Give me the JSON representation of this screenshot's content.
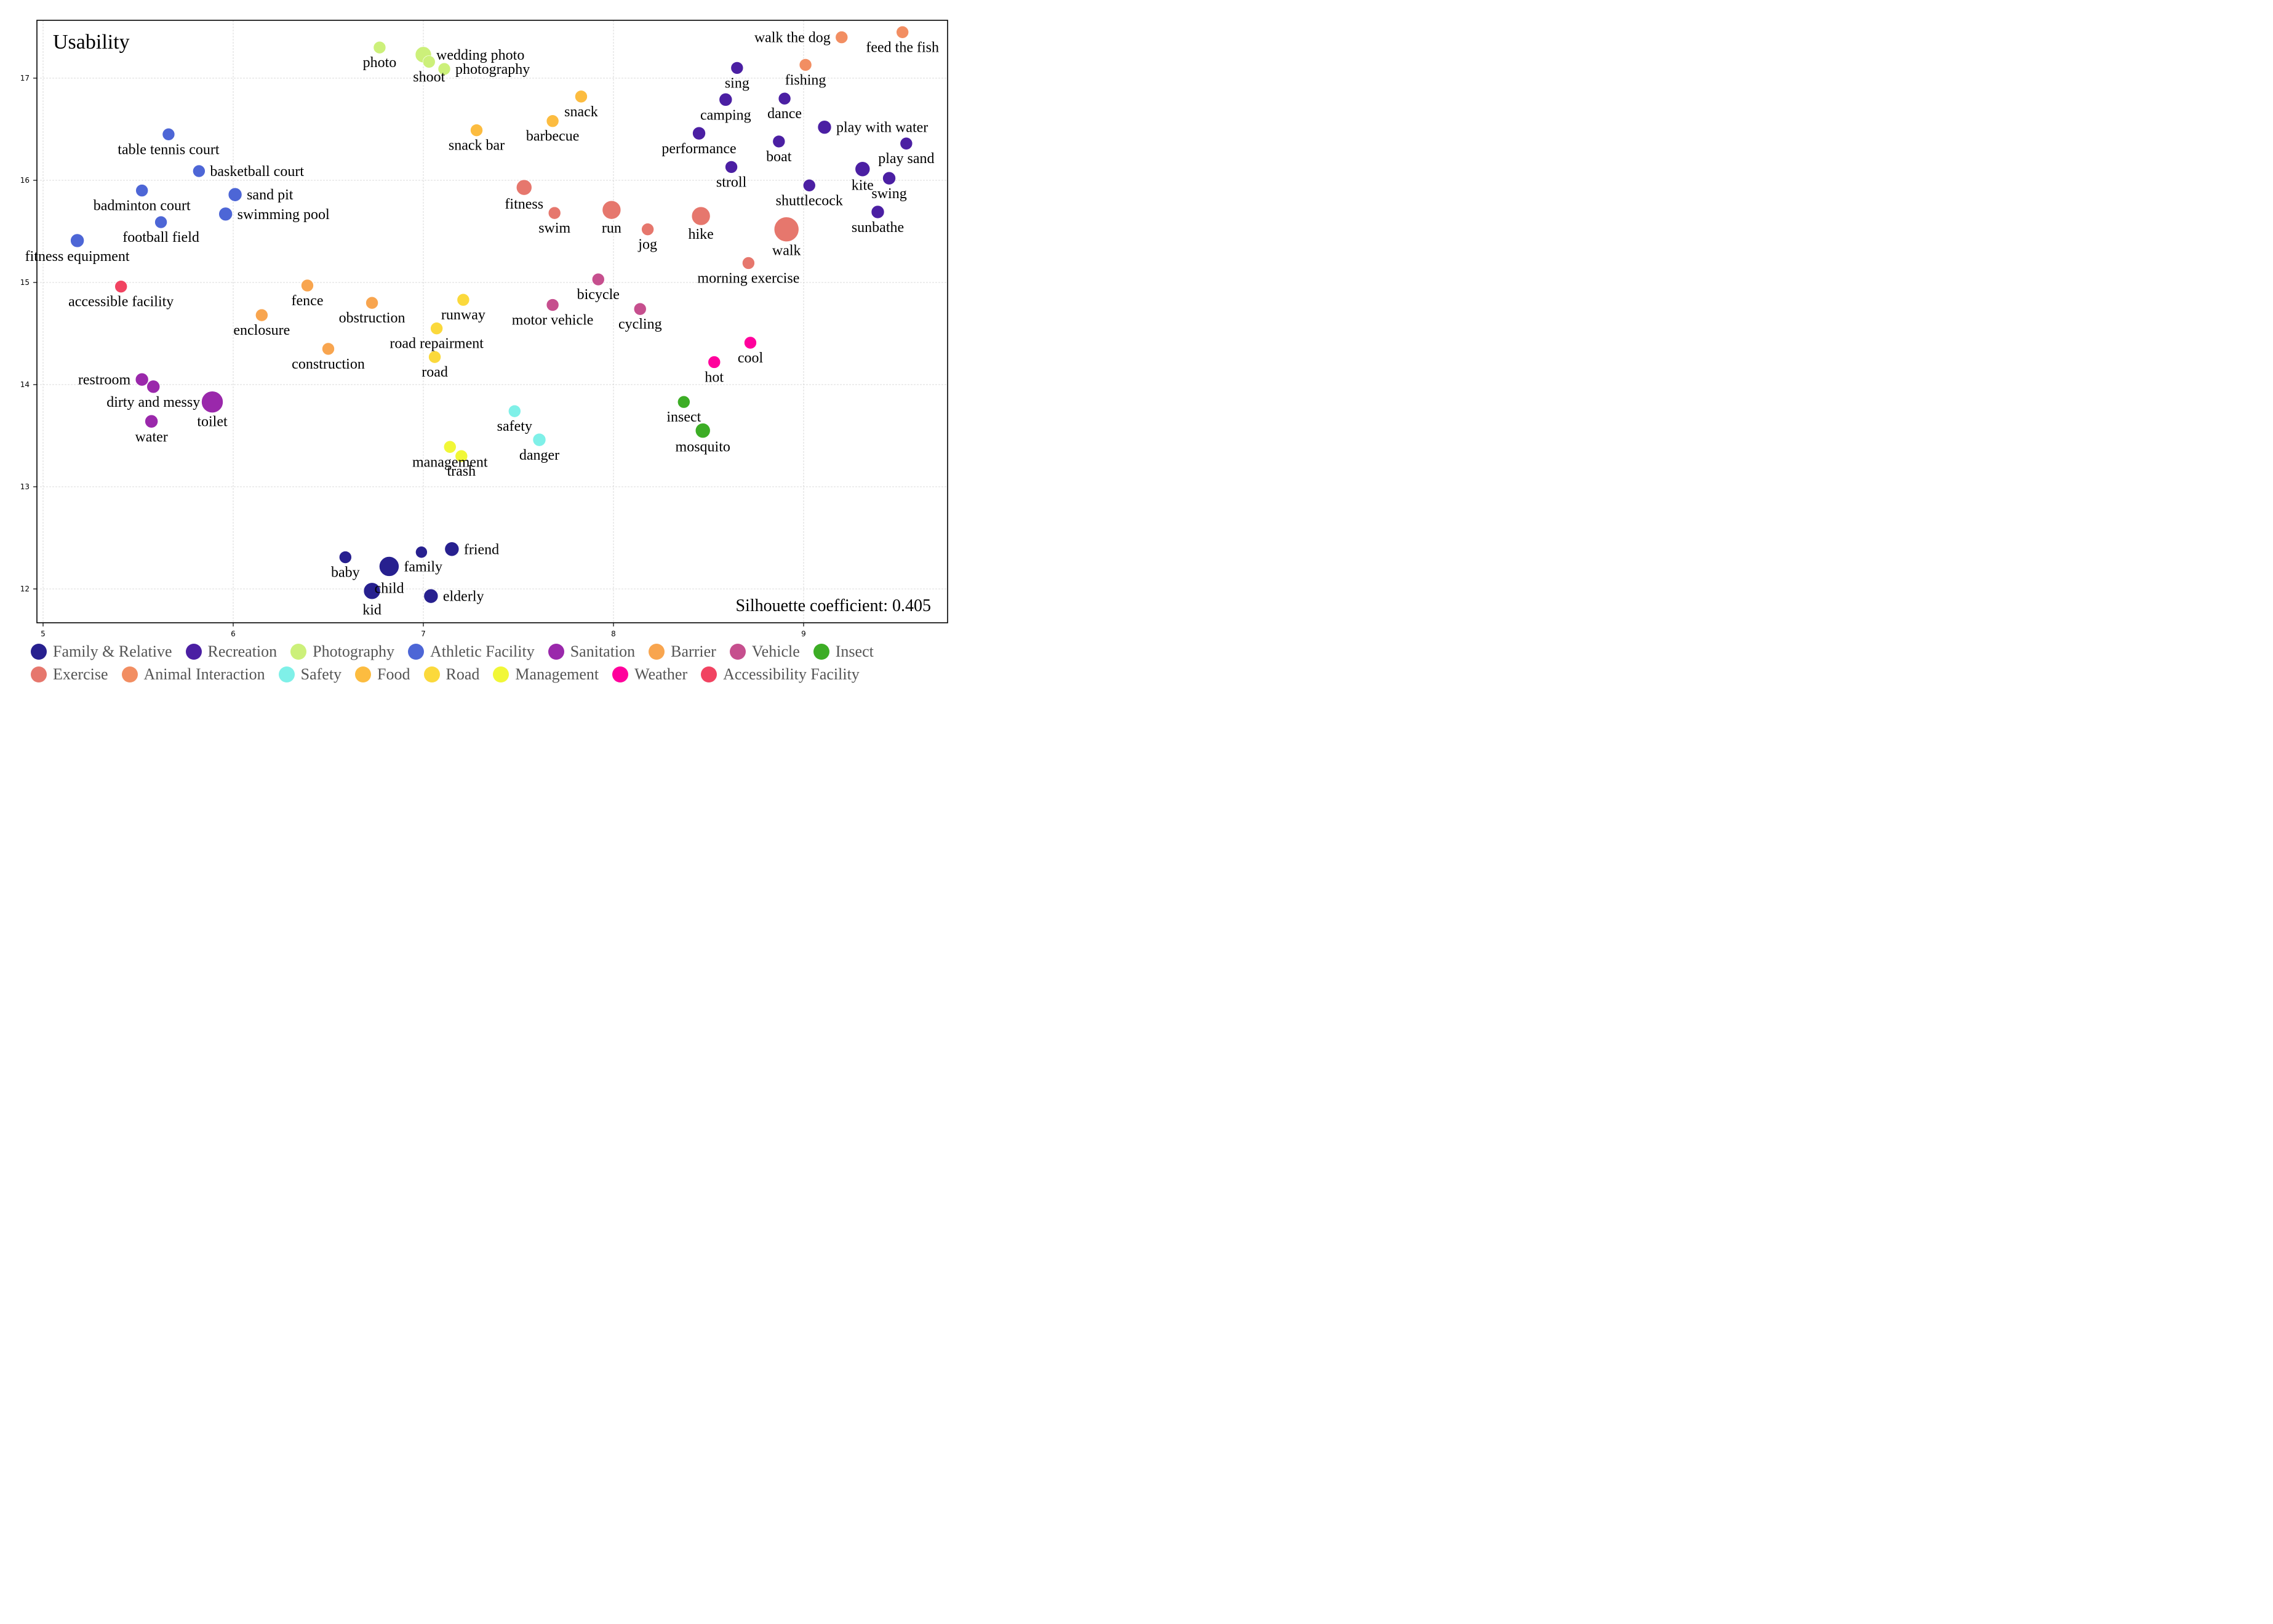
{
  "chart_data": {
    "type": "scatter",
    "title": "Usability",
    "annotation": "Silhouette coefficient: 0.405",
    "xlabel": "",
    "ylabel": "",
    "xlim": [
      4.97,
      9.78
    ],
    "ylim": [
      11.66,
      17.57
    ],
    "xticks": [
      5,
      6,
      7,
      8,
      9
    ],
    "yticks": [
      12,
      13,
      14,
      15,
      16,
      17
    ],
    "grid": true,
    "legend_position": "bottom",
    "categories": [
      {
        "name": "Family & Relative",
        "color": "#27208f"
      },
      {
        "name": "Recreation",
        "color": "#4b1fa3"
      },
      {
        "name": "Photography",
        "color": "#ccf07a"
      },
      {
        "name": "Athletic Facility",
        "color": "#4d66d6"
      },
      {
        "name": "Sanitation",
        "color": "#9a28ab"
      },
      {
        "name": "Barrier",
        "color": "#f8a54f"
      },
      {
        "name": "Vehicle",
        "color": "#c64f8e"
      },
      {
        "name": "Insect",
        "color": "#3cad25"
      },
      {
        "name": "Exercise",
        "color": "#e6776d"
      },
      {
        "name": "Animal Interaction",
        "color": "#f28e62"
      },
      {
        "name": "Safety",
        "color": "#7ff0e8"
      },
      {
        "name": "Food",
        "color": "#fcbc40"
      },
      {
        "name": "Road",
        "color": "#fbd93c"
      },
      {
        "name": "Management",
        "color": "#f1f737"
      },
      {
        "name": "Weather",
        "color": "#ff009c"
      },
      {
        "name": "Accessibility Facility",
        "color": "#f14361"
      }
    ],
    "points": [
      {
        "label": "photo",
        "category": "Photography",
        "x": 6.77,
        "y": 17.3,
        "size": 1,
        "pos": "below"
      },
      {
        "label": "wedding photo",
        "category": "Photography",
        "x": 7.0,
        "y": 17.23,
        "size": 1.3,
        "pos": "right"
      },
      {
        "label": "shoot",
        "category": "Photography",
        "x": 7.03,
        "y": 17.16,
        "size": 1,
        "pos": "below"
      },
      {
        "label": "photography",
        "category": "Photography",
        "x": 7.11,
        "y": 17.09,
        "size": 1,
        "pos": "right"
      },
      {
        "label": "snack",
        "category": "Food",
        "x": 7.83,
        "y": 16.82,
        "size": 1,
        "pos": "below"
      },
      {
        "label": "barbecue",
        "category": "Food",
        "x": 7.68,
        "y": 16.58,
        "size": 1,
        "pos": "below"
      },
      {
        "label": "snack bar",
        "category": "Food",
        "x": 7.28,
        "y": 16.49,
        "size": 1,
        "pos": "below"
      },
      {
        "label": "walk the dog",
        "category": "Animal Interaction",
        "x": 9.2,
        "y": 17.4,
        "size": 1,
        "pos": "left"
      },
      {
        "label": "feed the fish",
        "category": "Animal Interaction",
        "x": 9.52,
        "y": 17.45,
        "size": 1,
        "pos": "below"
      },
      {
        "label": "fishing",
        "category": "Animal Interaction",
        "x": 9.01,
        "y": 17.13,
        "size": 1,
        "pos": "below"
      },
      {
        "label": "sing",
        "category": "Recreation",
        "x": 8.65,
        "y": 17.1,
        "size": 1,
        "pos": "below"
      },
      {
        "label": "camping",
        "category": "Recreation",
        "x": 8.59,
        "y": 16.79,
        "size": 1.05,
        "pos": "below"
      },
      {
        "label": "dance",
        "category": "Recreation",
        "x": 8.9,
        "y": 16.8,
        "size": 1,
        "pos": "below"
      },
      {
        "label": "play with water",
        "category": "Recreation",
        "x": 9.11,
        "y": 16.52,
        "size": 1.1,
        "pos": "right"
      },
      {
        "label": "performance",
        "category": "Recreation",
        "x": 8.45,
        "y": 16.46,
        "size": 1.05,
        "pos": "below"
      },
      {
        "label": "boat",
        "category": "Recreation",
        "x": 8.87,
        "y": 16.38,
        "size": 1,
        "pos": "below"
      },
      {
        "label": "play sand",
        "category": "Recreation",
        "x": 9.54,
        "y": 16.36,
        "size": 1,
        "pos": "below"
      },
      {
        "label": "stroll",
        "category": "Recreation",
        "x": 8.62,
        "y": 16.13,
        "size": 1,
        "pos": "below"
      },
      {
        "label": "kite",
        "category": "Recreation",
        "x": 9.31,
        "y": 16.11,
        "size": 1.2,
        "pos": "below"
      },
      {
        "label": "swing",
        "category": "Recreation",
        "x": 9.45,
        "y": 16.02,
        "size": 1.05,
        "pos": "below"
      },
      {
        "label": "shuttlecock",
        "category": "Recreation",
        "x": 9.03,
        "y": 15.95,
        "size": 1,
        "pos": "below"
      },
      {
        "label": "sunbathe",
        "category": "Recreation",
        "x": 9.39,
        "y": 15.69,
        "size": 1.05,
        "pos": "below"
      },
      {
        "label": "fitness",
        "category": "Exercise",
        "x": 7.53,
        "y": 15.93,
        "size": 1.25,
        "pos": "below"
      },
      {
        "label": "swim",
        "category": "Exercise",
        "x": 7.69,
        "y": 15.68,
        "size": 1,
        "pos": "below"
      },
      {
        "label": "run",
        "category": "Exercise",
        "x": 7.99,
        "y": 15.71,
        "size": 1.5,
        "pos": "below"
      },
      {
        "label": "jog",
        "category": "Exercise",
        "x": 8.18,
        "y": 15.52,
        "size": 1,
        "pos": "below"
      },
      {
        "label": "hike",
        "category": "Exercise",
        "x": 8.46,
        "y": 15.65,
        "size": 1.5,
        "pos": "below"
      },
      {
        "label": "walk",
        "category": "Exercise",
        "x": 8.91,
        "y": 15.52,
        "size": 2.0,
        "pos": "below"
      },
      {
        "label": "morning exercise",
        "category": "Exercise",
        "x": 8.71,
        "y": 15.19,
        "size": 1,
        "pos": "below"
      },
      {
        "label": "table tennis court",
        "category": "Athletic Facility",
        "x": 5.66,
        "y": 16.45,
        "size": 1,
        "pos": "below"
      },
      {
        "label": "basketball court",
        "category": "Athletic Facility",
        "x": 5.82,
        "y": 16.09,
        "size": 1,
        "pos": "right"
      },
      {
        "label": "badminton court",
        "category": "Athletic Facility",
        "x": 5.52,
        "y": 15.9,
        "size": 1,
        "pos": "below"
      },
      {
        "label": "sand pit",
        "category": "Athletic Facility",
        "x": 6.01,
        "y": 15.86,
        "size": 1.1,
        "pos": "right"
      },
      {
        "label": "swimming pool",
        "category": "Athletic Facility",
        "x": 5.96,
        "y": 15.67,
        "size": 1.1,
        "pos": "right"
      },
      {
        "label": "football field",
        "category": "Athletic Facility",
        "x": 5.62,
        "y": 15.59,
        "size": 1,
        "pos": "below"
      },
      {
        "label": "fitness equipment",
        "category": "Athletic Facility",
        "x": 5.18,
        "y": 15.41,
        "size": 1.1,
        "pos": "below"
      },
      {
        "label": "accessible facility",
        "category": "Accessibility Facility",
        "x": 5.41,
        "y": 14.96,
        "size": 1,
        "pos": "below"
      },
      {
        "label": "fence",
        "category": "Barrier",
        "x": 6.39,
        "y": 14.97,
        "size": 1,
        "pos": "below"
      },
      {
        "label": "enclosure",
        "category": "Barrier",
        "x": 6.15,
        "y": 14.68,
        "size": 1,
        "pos": "below"
      },
      {
        "label": "obstruction",
        "category": "Barrier",
        "x": 6.73,
        "y": 14.8,
        "size": 1,
        "pos": "below"
      },
      {
        "label": "construction",
        "category": "Barrier",
        "x": 6.5,
        "y": 14.35,
        "size": 1,
        "pos": "below"
      },
      {
        "label": "runway",
        "category": "Road",
        "x": 7.21,
        "y": 14.83,
        "size": 1,
        "pos": "below"
      },
      {
        "label": "road repairment",
        "category": "Road",
        "x": 7.07,
        "y": 14.55,
        "size": 1,
        "pos": "below"
      },
      {
        "label": "road",
        "category": "Road",
        "x": 7.06,
        "y": 14.27,
        "size": 1,
        "pos": "below"
      },
      {
        "label": "bicycle",
        "category": "Vehicle",
        "x": 7.92,
        "y": 15.03,
        "size": 1,
        "pos": "below"
      },
      {
        "label": "motor vehicle",
        "category": "Vehicle",
        "x": 7.68,
        "y": 14.78,
        "size": 1,
        "pos": "below"
      },
      {
        "label": "cycling",
        "category": "Vehicle",
        "x": 8.14,
        "y": 14.74,
        "size": 1,
        "pos": "below"
      },
      {
        "label": "cool",
        "category": "Weather",
        "x": 8.72,
        "y": 14.41,
        "size": 1,
        "pos": "below"
      },
      {
        "label": "hot",
        "category": "Weather",
        "x": 8.53,
        "y": 14.22,
        "size": 1,
        "pos": "below"
      },
      {
        "label": "restroom",
        "category": "Sanitation",
        "x": 5.52,
        "y": 14.05,
        "size": 1.05,
        "pos": "left"
      },
      {
        "label": "dirty and messy",
        "category": "Sanitation",
        "x": 5.58,
        "y": 13.98,
        "size": 1.05,
        "pos": "below"
      },
      {
        "label": "toilet",
        "category": "Sanitation",
        "x": 5.89,
        "y": 13.83,
        "size": 1.75,
        "pos": "below"
      },
      {
        "label": "water",
        "category": "Sanitation",
        "x": 5.57,
        "y": 13.64,
        "size": 1.05,
        "pos": "below"
      },
      {
        "label": "safety",
        "category": "Safety",
        "x": 7.48,
        "y": 13.74,
        "size": 1,
        "pos": "below"
      },
      {
        "label": "danger",
        "category": "Safety",
        "x": 7.61,
        "y": 13.46,
        "size": 1.05,
        "pos": "below"
      },
      {
        "label": "management",
        "category": "Management",
        "x": 7.14,
        "y": 13.39,
        "size": 1,
        "pos": "below"
      },
      {
        "label": "trash",
        "category": "Management",
        "x": 7.2,
        "y": 13.3,
        "size": 1,
        "pos": "below"
      },
      {
        "label": "insect",
        "category": "Insect",
        "x": 8.37,
        "y": 13.83,
        "size": 1,
        "pos": "below"
      },
      {
        "label": "mosquito",
        "category": "Insect",
        "x": 8.47,
        "y": 13.55,
        "size": 1.2,
        "pos": "below"
      },
      {
        "label": "baby",
        "category": "Family & Relative",
        "x": 6.59,
        "y": 12.31,
        "size": 1,
        "pos": "below"
      },
      {
        "label": "family",
        "category": "Family & Relative",
        "x": 6.82,
        "y": 12.22,
        "size": 1.6,
        "pos": "right"
      },
      {
        "label": "",
        "category": "Family & Relative",
        "x": 6.99,
        "y": 12.36,
        "size": 0.95,
        "pos": "none"
      },
      {
        "label": "friend",
        "category": "Family & Relative",
        "x": 7.15,
        "y": 12.39,
        "size": 1.15,
        "pos": "right"
      },
      {
        "label": "child",
        "category": "Family & Relative",
        "x": 6.73,
        "y": 11.98,
        "size": 1.35,
        "pos": "childlbl"
      },
      {
        "label": "kid",
        "category": "Family & Relative",
        "x": 6.73,
        "y": 11.98,
        "size": 0,
        "pos": "below"
      },
      {
        "label": "elderly",
        "category": "Family & Relative",
        "x": 7.04,
        "y": 11.93,
        "size": 1.15,
        "pos": "right"
      }
    ]
  }
}
